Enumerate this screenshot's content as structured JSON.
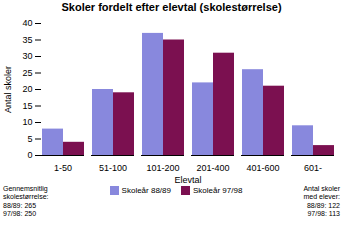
{
  "chart_data": {
    "type": "bar",
    "title": "Skoler fordelt efter elevtal (skolestørrelse)",
    "categories": [
      "1-50",
      "51-100",
      "101-200",
      "201-400",
      "401-600",
      "601-"
    ],
    "series": [
      {
        "name": "Skoleår 88/89",
        "color": "#8888dd",
        "values": [
          8,
          20,
          37,
          22,
          26,
          9
        ]
      },
      {
        "name": "Skoleår 97/98",
        "color": "#7b1050",
        "values": [
          4,
          19,
          35,
          31,
          21,
          3
        ]
      }
    ],
    "xlabel": "Elevtal",
    "ylabel": "Antal skoler",
    "ylim": [
      0,
      40
    ],
    "yticks": [
      0,
      5,
      10,
      15,
      20,
      25,
      30,
      35,
      40
    ],
    "legend": "bottom",
    "annotations": [
      "Gennemsnitlig\nskolestørrelse:\n88/89: 265\n97/98: 250",
      "Antal skoler\nmed elever:\n88/89: 122\n97/98: 113"
    ]
  }
}
